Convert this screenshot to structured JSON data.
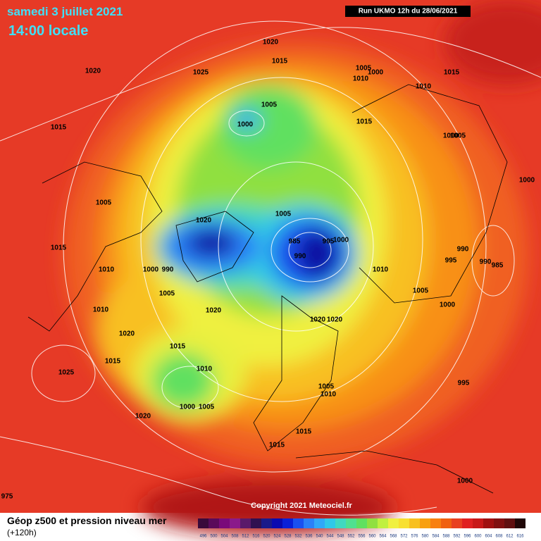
{
  "header": {
    "date": "samedi 3 juillet 2021",
    "time": "14:00 locale",
    "run": "Run UKMO 12h du 28/06/2021"
  },
  "copyright": "Copyright 2021 Meteociel.fr",
  "legend": {
    "title": "Géop z500 et pression niveau mer",
    "subtitle": "(+120h)",
    "scale": [
      {
        "value": 496,
        "color": "#3a0a3a"
      },
      {
        "value": 500,
        "color": "#5a0a5a"
      },
      {
        "value": 504,
        "color": "#7a0a7a"
      },
      {
        "value": 508,
        "color": "#8a1a8a"
      },
      {
        "value": 512,
        "color": "#5a1a6a"
      },
      {
        "value": 516,
        "color": "#301050"
      },
      {
        "value": 520,
        "color": "#1a1a8a"
      },
      {
        "value": 524,
        "color": "#0a0ab0"
      },
      {
        "value": 528,
        "color": "#0a20d8"
      },
      {
        "value": 532,
        "color": "#1a50f0"
      },
      {
        "value": 536,
        "color": "#2a80f8"
      },
      {
        "value": 540,
        "color": "#30a8f8"
      },
      {
        "value": 544,
        "color": "#30c8e8"
      },
      {
        "value": 548,
        "color": "#40d8c0"
      },
      {
        "value": 552,
        "color": "#50e090"
      },
      {
        "value": 556,
        "color": "#60e060"
      },
      {
        "value": 560,
        "color": "#90e040"
      },
      {
        "value": 564,
        "color": "#c0f040"
      },
      {
        "value": 568,
        "color": "#f0f040"
      },
      {
        "value": 572,
        "color": "#f8e030"
      },
      {
        "value": 576,
        "color": "#f8c020"
      },
      {
        "value": 580,
        "color": "#f8a010"
      },
      {
        "value": 584,
        "color": "#f88010"
      },
      {
        "value": 588,
        "color": "#f06010"
      },
      {
        "value": 592,
        "color": "#e84020"
      },
      {
        "value": 596,
        "color": "#e02020"
      },
      {
        "value": 600,
        "color": "#c81818"
      },
      {
        "value": 604,
        "color": "#a01010"
      },
      {
        "value": 608,
        "color": "#801010"
      },
      {
        "value": 612,
        "color": "#601010"
      },
      {
        "value": 616,
        "color": "#200808"
      }
    ]
  },
  "pressure_labels": [
    1020,
    1015,
    1020,
    1025,
    1005,
    1000,
    1010,
    1015,
    1010,
    1005,
    1000,
    1015,
    1015,
    1000,
    1005,
    1000,
    1005,
    1020,
    1005,
    985,
    995,
    1000,
    990,
    990,
    995,
    990,
    985,
    1015,
    1010,
    1000,
    990,
    1010,
    1005,
    1005,
    1000,
    1010,
    1020,
    1020,
    1020,
    1020,
    1015,
    1015,
    1010,
    1025,
    995,
    1005,
    1010,
    1000,
    1005,
    1020,
    1015,
    1015,
    1000,
    975
  ]
}
